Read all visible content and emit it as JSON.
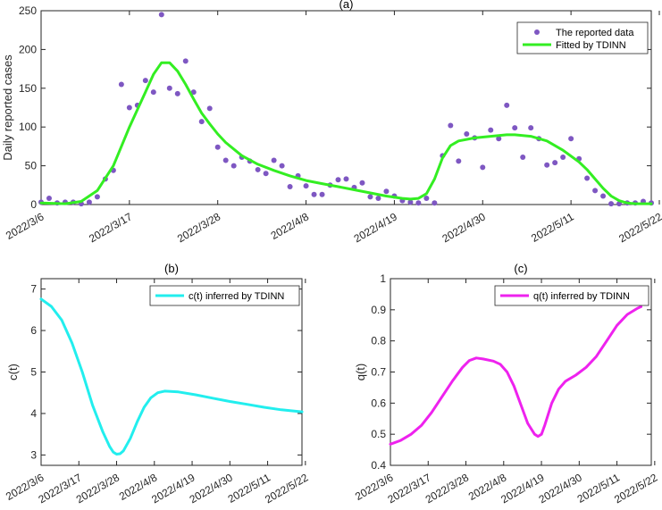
{
  "chart_data": [
    {
      "type": "scatter+line",
      "title": "(a)",
      "xlabel": "",
      "ylabel": "Daily reported cases",
      "ylim": [
        0,
        250
      ],
      "yticks": [
        0,
        50,
        100,
        150,
        200,
        250
      ],
      "x_tick_labels": [
        "2022/3/6",
        "2022/3/17",
        "2022/3/28",
        "2022/4/8",
        "2022/4/19",
        "2022/4/30",
        "2022/5/11",
        "2022/5/22"
      ],
      "x_start_label": "2022/3/6",
      "legend_position": "top-right",
      "series": [
        {
          "name": "The reported data",
          "kind": "scatter",
          "color": "#7e57c2",
          "y": [
            3,
            8,
            2,
            3,
            3,
            1,
            3,
            10,
            33,
            44,
            155,
            125,
            128,
            160,
            145,
            245,
            150,
            143,
            185,
            145,
            107,
            124,
            74,
            57,
            50,
            61,
            56,
            45,
            40,
            57,
            50,
            23,
            37,
            24,
            13,
            13,
            25,
            32,
            33,
            22,
            28,
            10,
            8,
            17,
            11,
            5,
            3,
            2,
            8,
            2,
            63,
            102,
            56,
            91,
            86,
            48,
            96,
            85,
            128,
            99,
            61,
            99,
            85,
            51,
            54,
            61,
            85,
            59,
            34,
            18,
            11,
            1,
            1,
            2,
            2,
            4,
            2
          ]
        },
        {
          "name": "Fitted by TDINN",
          "kind": "line",
          "color": "#33ee22",
          "points": [
            [
              0,
              2
            ],
            [
              3,
              1
            ],
            [
              5,
              4
            ],
            [
              7,
              18
            ],
            [
              9,
              50
            ],
            [
              11,
              100
            ],
            [
              13,
              145
            ],
            [
              14,
              168
            ],
            [
              15,
              183
            ],
            [
              16,
              183
            ],
            [
              17,
              172
            ],
            [
              18,
              155
            ],
            [
              19,
              136
            ],
            [
              20,
              118
            ],
            [
              21,
              104
            ],
            [
              22,
              91
            ],
            [
              23,
              80
            ],
            [
              25,
              63
            ],
            [
              27,
              52
            ],
            [
              29,
              44
            ],
            [
              31,
              37
            ],
            [
              33,
              31
            ],
            [
              35,
              27
            ],
            [
              37,
              23
            ],
            [
              39,
              19
            ],
            [
              41,
              15
            ],
            [
              43,
              11
            ],
            [
              45,
              8
            ],
            [
              46,
              7
            ],
            [
              47,
              8
            ],
            [
              48,
              14
            ],
            [
              49,
              33
            ],
            [
              50,
              60
            ],
            [
              51,
              76
            ],
            [
              52,
              82
            ],
            [
              54,
              86
            ],
            [
              56,
              88
            ],
            [
              58,
              90
            ],
            [
              59,
              90
            ],
            [
              61,
              88
            ],
            [
              63,
              82
            ],
            [
              65,
              70
            ],
            [
              67,
              55
            ],
            [
              68,
              45
            ],
            [
              69,
              33
            ],
            [
              70,
              21
            ],
            [
              71,
              11
            ],
            [
              72,
              5
            ],
            [
              73,
              2
            ],
            [
              74,
              1
            ],
            [
              75,
              1
            ],
            [
              76,
              1
            ]
          ]
        }
      ]
    },
    {
      "type": "line",
      "title": "(b)",
      "xlabel": "",
      "ylabel": "c(t)",
      "ylim": [
        2.75,
        7.25
      ],
      "yticks": [
        3,
        4,
        5,
        6,
        7
      ],
      "x_tick_labels": [
        "2022/3/6",
        "2022/3/17",
        "2022/3/28",
        "2022/4/8",
        "2022/4/19",
        "2022/4/30",
        "2022/5/11",
        "2022/5/22"
      ],
      "legend_position": "top-right",
      "series": [
        {
          "name": "c(t) inferred by TDINN",
          "color": "#22eeee",
          "points": [
            [
              0,
              6.76
            ],
            [
              3,
              6.58
            ],
            [
              6,
              6.25
            ],
            [
              9,
              5.7
            ],
            [
              12,
              5.0
            ],
            [
              15,
              4.2
            ],
            [
              18,
              3.55
            ],
            [
              20,
              3.2
            ],
            [
              21,
              3.07
            ],
            [
              22,
              3.02
            ],
            [
              23,
              3.03
            ],
            [
              24,
              3.1
            ],
            [
              26,
              3.4
            ],
            [
              28,
              3.8
            ],
            [
              30,
              4.15
            ],
            [
              32,
              4.38
            ],
            [
              34,
              4.5
            ],
            [
              36,
              4.54
            ],
            [
              40,
              4.52
            ],
            [
              45,
              4.45
            ],
            [
              50,
              4.37
            ],
            [
              55,
              4.29
            ],
            [
              60,
              4.22
            ],
            [
              65,
              4.15
            ],
            [
              70,
              4.09
            ],
            [
              76,
              4.04
            ]
          ]
        }
      ]
    },
    {
      "type": "line",
      "title": "(c)",
      "xlabel": "",
      "ylabel": "q(t)",
      "ylim": [
        0.4,
        1.0
      ],
      "yticks": [
        0.4,
        0.5,
        0.6,
        0.7,
        0.8,
        0.9,
        1
      ],
      "x_tick_labels": [
        "2022/3/6",
        "2022/3/17",
        "2022/3/28",
        "2022/4/8",
        "2022/4/19",
        "2022/4/30",
        "2022/5/11",
        "2022/5/22"
      ],
      "legend_position": "top-right",
      "series": [
        {
          "name": "q(t) inferred by TDINN",
          "color": "#ee22ee",
          "points": [
            [
              0,
              0.468
            ],
            [
              3,
              0.48
            ],
            [
              6,
              0.5
            ],
            [
              9,
              0.528
            ],
            [
              12,
              0.57
            ],
            [
              15,
              0.62
            ],
            [
              18,
              0.67
            ],
            [
              21,
              0.715
            ],
            [
              23,
              0.737
            ],
            [
              25,
              0.745
            ],
            [
              27,
              0.742
            ],
            [
              30,
              0.735
            ],
            [
              32,
              0.725
            ],
            [
              34,
              0.7
            ],
            [
              36,
              0.655
            ],
            [
              38,
              0.595
            ],
            [
              40,
              0.535
            ],
            [
              42,
              0.5
            ],
            [
              43,
              0.493
            ],
            [
              44,
              0.5
            ],
            [
              45,
              0.53
            ],
            [
              47,
              0.6
            ],
            [
              49,
              0.645
            ],
            [
              51,
              0.67
            ],
            [
              54,
              0.69
            ],
            [
              57,
              0.715
            ],
            [
              60,
              0.75
            ],
            [
              63,
              0.8
            ],
            [
              66,
              0.85
            ],
            [
              69,
              0.885
            ],
            [
              72,
              0.905
            ],
            [
              73,
              0.91
            ]
          ]
        }
      ]
    }
  ]
}
